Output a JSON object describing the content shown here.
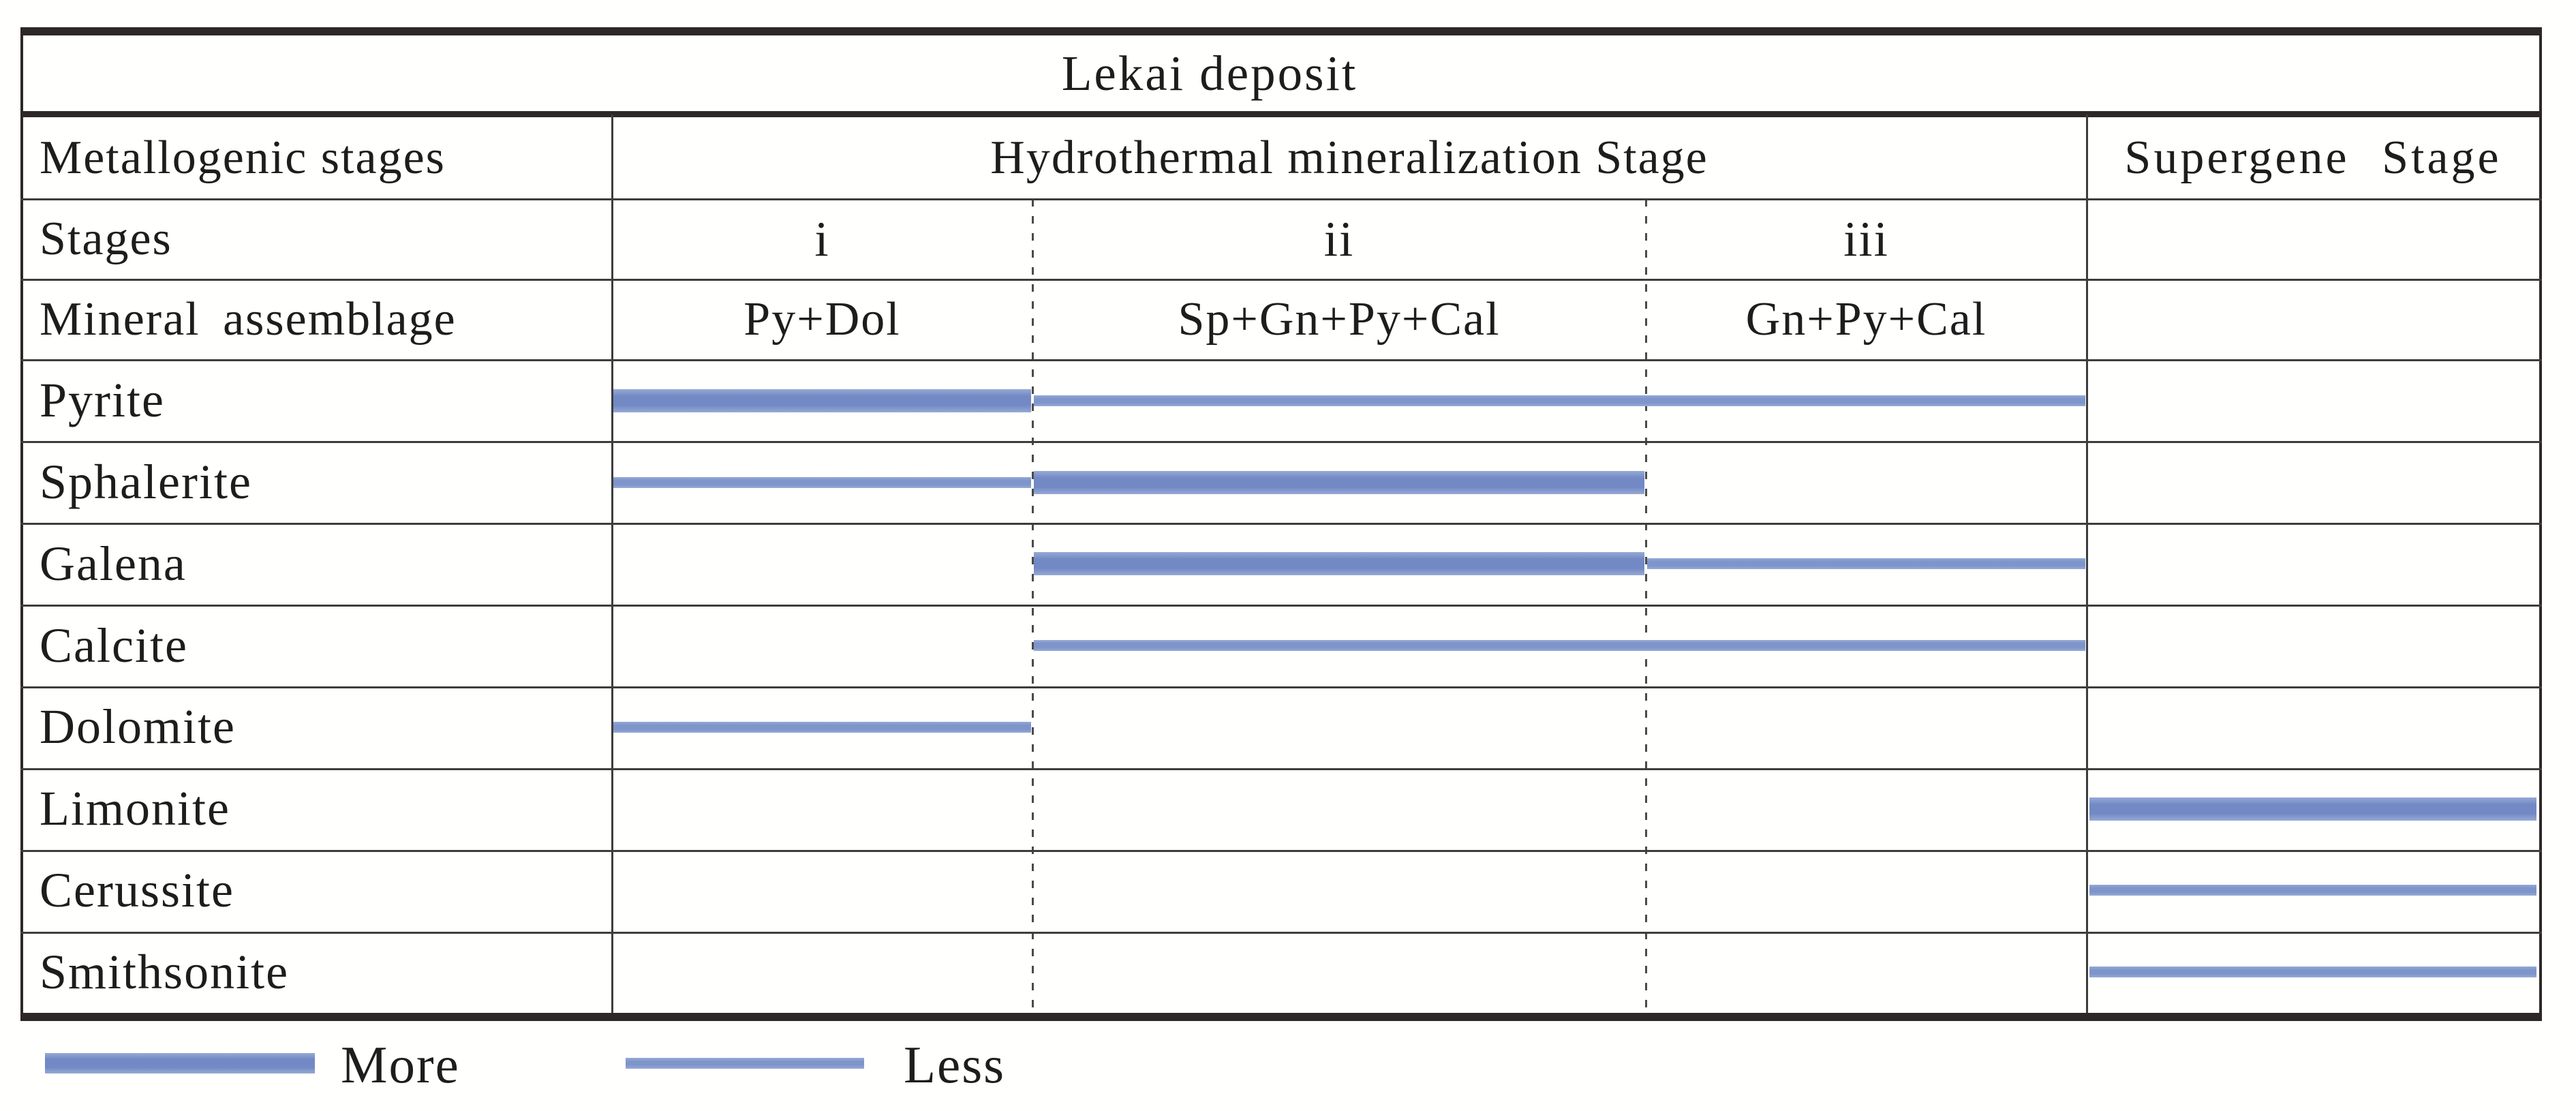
{
  "title": "Lekai deposit",
  "headers": {
    "metallogenic": "Metallogenic stages",
    "hydrothermal": "Hydrothermal mineralization Stage",
    "supergene": "Supergene Stage",
    "stages_row": "Stages",
    "assemblage_row": "Mineral assemblage"
  },
  "colors": {
    "bar_more": "#7289c5",
    "bar_less": "#7e95cb",
    "bar_edge_light": "#97aad4",
    "heavy_border": "#2e2727",
    "thin_line": "#3d3d3d",
    "background": "#fffffd"
  },
  "chart_data": {
    "type": "table",
    "title": "Lekai deposit",
    "description": "Mineral paragenesis (Gantt-style) diagram: bar thickness encodes relative abundance of each mineral across metallogenic stages",
    "column_groups": [
      {
        "label": "Hydrothermal mineralization Stage",
        "stages": [
          "i",
          "ii",
          "iii"
        ],
        "assemblages": [
          "Py+Dol",
          "Sp+Gn+Py+Cal",
          "Gn+Py+Cal"
        ]
      },
      {
        "label": "Supergene Stage",
        "stages": [],
        "assemblages": []
      }
    ],
    "row_labels": {
      "stages": "Stages",
      "assemblage": "Mineral assemblage"
    },
    "abundance_encoding": {
      "more": "thick bar",
      "less": "thin bar"
    },
    "minerals": [
      {
        "name": "Pyrite",
        "segments": [
          {
            "from": "i",
            "to": "i",
            "abundance": "more"
          },
          {
            "from": "ii",
            "to": "iii",
            "abundance": "less"
          }
        ]
      },
      {
        "name": "Sphalerite",
        "segments": [
          {
            "from": "i",
            "to": "i",
            "abundance": "less"
          },
          {
            "from": "ii",
            "to": "ii",
            "abundance": "more"
          }
        ]
      },
      {
        "name": "Galena",
        "segments": [
          {
            "from": "ii",
            "to": "ii",
            "abundance": "more"
          },
          {
            "from": "iii",
            "to": "iii",
            "abundance": "less"
          }
        ]
      },
      {
        "name": "Calcite",
        "segments": [
          {
            "from": "ii",
            "to": "iii",
            "abundance": "less"
          }
        ]
      },
      {
        "name": "Dolomite",
        "segments": [
          {
            "from": "i",
            "to": "i",
            "abundance": "less"
          }
        ]
      },
      {
        "name": "Limonite",
        "segments": [
          {
            "from": "supergene",
            "to": "supergene",
            "abundance": "more"
          }
        ]
      },
      {
        "name": "Cerussite",
        "segments": [
          {
            "from": "supergene",
            "to": "supergene",
            "abundance": "less"
          }
        ]
      },
      {
        "name": "Smithsonite",
        "segments": [
          {
            "from": "supergene",
            "to": "supergene",
            "abundance": "less"
          }
        ]
      }
    ],
    "legend": [
      {
        "label": "More",
        "style": "thick"
      },
      {
        "label": "Less",
        "style": "thin"
      }
    ]
  }
}
